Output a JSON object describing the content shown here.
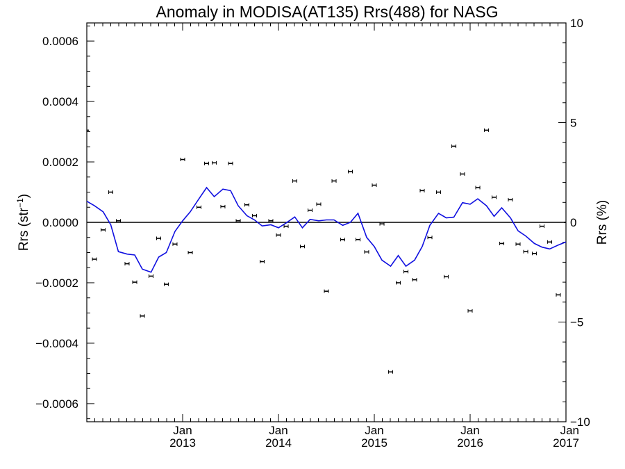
{
  "chart_data": {
    "type": "scatter",
    "title": "Anomaly in MODISA(AT135) Rrs(488) for NASG",
    "ylabel_left": "Rrs (str",
    "ylabel_left_sup": "−1",
    "ylabel_left_end": ")",
    "ylabel_right": "Rrs (%)",
    "xlim": [
      2012.0,
      2017.0
    ],
    "ylim_left": [
      -0.00066,
      0.00066
    ],
    "ylim_right": [
      -10,
      10
    ],
    "grid": false,
    "left_ticks": [
      {
        "value": 0.0006,
        "label": "0.0006"
      },
      {
        "value": 0.0004,
        "label": "0.0004"
      },
      {
        "value": 0.0002,
        "label": "0.0002"
      },
      {
        "value": 0.0,
        "label": "0.0000"
      },
      {
        "value": -0.0002,
        "label": "−0.0002"
      },
      {
        "value": -0.0004,
        "label": "−0.0004"
      },
      {
        "value": -0.0006,
        "label": "−0.0006"
      }
    ],
    "right_ticks": [
      {
        "value": 10,
        "label": "10"
      },
      {
        "value": 5,
        "label": "5"
      },
      {
        "value": 0,
        "label": "0"
      },
      {
        "value": -5,
        "label": "−5"
      },
      {
        "value": -10,
        "label": "−10"
      }
    ],
    "x_ticks": [
      {
        "value": 2013.0,
        "month": "Jan",
        "year": "2013"
      },
      {
        "value": 2014.0,
        "month": "Jan",
        "year": "2014"
      },
      {
        "value": 2015.0,
        "month": "Jan",
        "year": "2015"
      },
      {
        "value": 2016.0,
        "month": "Jan",
        "year": "2016"
      },
      {
        "value": 2017.0,
        "month": "Jan",
        "year": "2017"
      }
    ],
    "series": [
      {
        "axis": "left",
        "style": "points-with-errorbars",
        "color": "#000000",
        "x": [
          2012.0,
          2012.08,
          2012.17,
          2012.25,
          2012.33,
          2012.42,
          2012.5,
          2012.58,
          2012.67,
          2012.75,
          2012.83,
          2012.92,
          2013.0,
          2013.08,
          2013.17,
          2013.25,
          2013.33,
          2013.42,
          2013.5,
          2013.58,
          2013.67,
          2013.75,
          2013.83,
          2013.92,
          2014.0,
          2014.08,
          2014.17,
          2014.25,
          2014.33,
          2014.42,
          2014.5,
          2014.58,
          2014.67,
          2014.75,
          2014.83,
          2014.92,
          2015.0,
          2015.08,
          2015.17,
          2015.25,
          2015.33,
          2015.42,
          2015.5,
          2015.58,
          2015.67,
          2015.75,
          2015.83,
          2015.92,
          2016.0,
          2016.08,
          2016.17,
          2016.25,
          2016.33,
          2016.42,
          2016.5,
          2016.58,
          2016.67,
          2016.75,
          2016.83,
          2016.92,
          2017.0
        ],
        "y": [
          0.000305,
          -0.000122,
          -2.5e-05,
          0.0001,
          5e-06,
          -0.000137,
          -0.000198,
          -0.00031,
          -0.000178,
          -5.3e-05,
          -0.000205,
          -7.2e-05,
          0.000208,
          -0.0001,
          5e-05,
          0.000195,
          0.000197,
          5.2e-05,
          0.000195,
          5e-06,
          5.8e-05,
          2.2e-05,
          -0.00013,
          5e-06,
          -4.2e-05,
          -1.3e-05,
          0.000137,
          -8e-05,
          4e-05,
          6e-05,
          -0.000228,
          0.000137,
          -5.7e-05,
          0.000168,
          -5.7e-05,
          -9.8e-05,
          0.000123,
          -5e-06,
          -0.000495,
          -0.0002,
          -0.000163,
          -0.00019,
          0.000105,
          -5e-05,
          0.0001,
          -0.00018,
          0.000252,
          0.00016,
          -0.000293,
          0.000115,
          0.000305,
          8.3e-05,
          -7e-05,
          7.5e-05,
          -7.2e-05,
          -9.7e-05,
          -0.000103,
          -1.3e-05,
          -6.5e-05,
          -0.00024,
          0.0
        ]
      },
      {
        "axis": "left",
        "style": "line",
        "color": "#1010e0",
        "x": [
          2012.0,
          2012.08,
          2012.17,
          2012.25,
          2012.33,
          2012.42,
          2012.5,
          2012.58,
          2012.67,
          2012.75,
          2012.83,
          2012.92,
          2013.0,
          2013.08,
          2013.17,
          2013.25,
          2013.33,
          2013.42,
          2013.5,
          2013.58,
          2013.67,
          2013.75,
          2013.83,
          2013.92,
          2014.0,
          2014.08,
          2014.17,
          2014.25,
          2014.33,
          2014.42,
          2014.5,
          2014.58,
          2014.67,
          2014.75,
          2014.83,
          2014.92,
          2015.0,
          2015.08,
          2015.17,
          2015.25,
          2015.33,
          2015.42,
          2015.5,
          2015.58,
          2015.67,
          2015.75,
          2015.83,
          2015.92,
          2016.0,
          2016.08,
          2016.17,
          2016.25,
          2016.33,
          2016.42,
          2016.5,
          2016.58,
          2016.67,
          2016.75,
          2016.83,
          2016.92,
          2017.0
        ],
        "y": [
          7e-05,
          5.5e-05,
          3.5e-05,
          -8e-06,
          -9.7e-05,
          -0.000105,
          -0.000108,
          -0.000155,
          -0.000165,
          -0.000115,
          -0.0001,
          -3e-05,
          5e-06,
          3.5e-05,
          7.8e-05,
          0.000115,
          8.5e-05,
          0.00011,
          0.000105,
          5.5e-05,
          2.2e-05,
          8e-06,
          -1.2e-05,
          -8e-06,
          -1.8e-05,
          -2e-06,
          1.8e-05,
          -1.8e-05,
          1e-05,
          5e-06,
          8e-06,
          8e-06,
          -1e-05,
          0.0,
          3e-05,
          -5e-05,
          -8e-05,
          -0.000125,
          -0.000145,
          -0.00011,
          -0.000145,
          -0.000125,
          -8e-05,
          -1e-05,
          3e-05,
          1.5e-05,
          1.7e-05,
          6.5e-05,
          6e-05,
          7.8e-05,
          5.5e-05,
          2e-05,
          4.8e-05,
          1.5e-05,
          -2.8e-05,
          -4.5e-05,
          -7e-05,
          -8.2e-05,
          -8.8e-05,
          -7.5e-05,
          -6.5e-05
        ]
      }
    ]
  }
}
